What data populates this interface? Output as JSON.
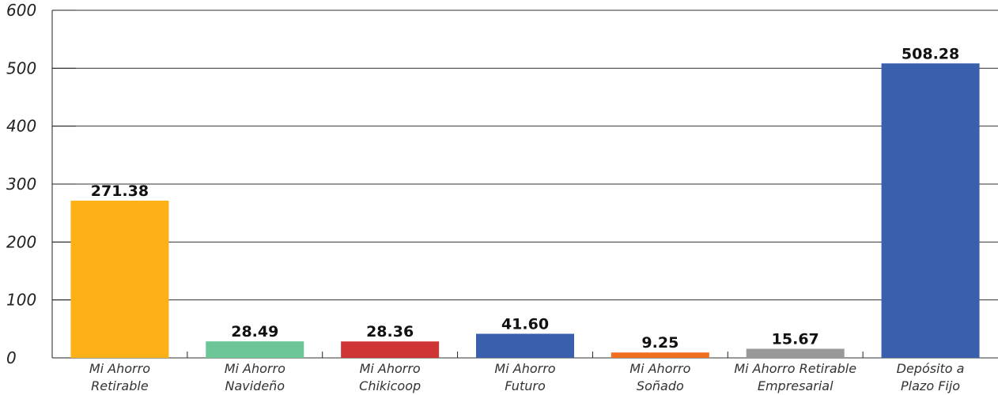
{
  "chart_data": {
    "type": "bar",
    "title": "",
    "xlabel": "",
    "ylabel": "",
    "ylim": [
      0,
      600
    ],
    "yticks": [
      0,
      100,
      200,
      300,
      400,
      500,
      600
    ],
    "grid": true,
    "categories": [
      [
        "Mi Ahorro",
        "Retirable"
      ],
      [
        "Mi Ahorro",
        "Navideño"
      ],
      [
        "Mi Ahorro",
        "Chikicoop"
      ],
      [
        "Mi Ahorro",
        "Futuro"
      ],
      [
        "Mi Ahorro",
        "Soñado"
      ],
      [
        "Mi Ahorro Retirable",
        "Empresarial"
      ],
      [
        "Depósito a",
        "Plazo Fijo"
      ]
    ],
    "values": [
      271.38,
      28.49,
      28.36,
      41.6,
      9.25,
      15.67,
      508.28
    ],
    "value_labels": [
      "271.38",
      "28.49",
      "28.36",
      "41.60",
      "9.25",
      "15.67",
      "508.28"
    ],
    "colors": [
      "#FDB116",
      "#6DC697",
      "#D03535",
      "#3A5FAD",
      "#F07020",
      "#999999",
      "#3A5FAD"
    ]
  }
}
